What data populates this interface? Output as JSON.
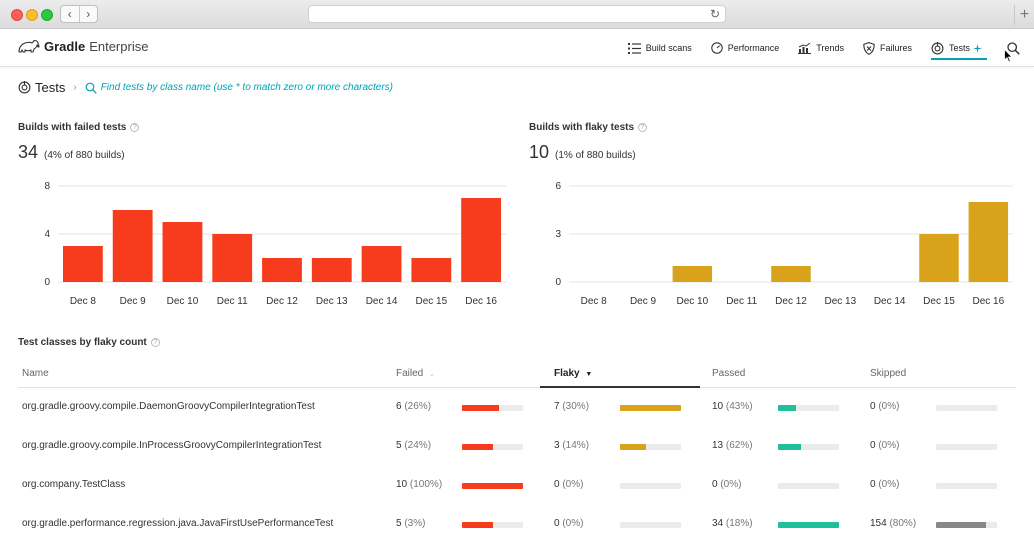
{
  "app": {
    "brand_bold": "Gradle",
    "brand_light": "Enterprise",
    "nav": [
      {
        "label": "Build scans",
        "icon": "list-icon"
      },
      {
        "label": "Performance",
        "icon": "gauge-icon"
      },
      {
        "label": "Trends",
        "icon": "trends-icon"
      },
      {
        "label": "Failures",
        "icon": "shield-icon"
      },
      {
        "label": "Tests",
        "icon": "tests-icon",
        "active": true
      }
    ],
    "accent": "#02a3b5"
  },
  "breadcrumb": {
    "title": "Tests",
    "separator": "›",
    "search_hint": "Find tests by class name (use * to match zero or more characters)"
  },
  "failed_panel": {
    "title": "Builds with failed tests",
    "count": "34",
    "pct": "(4% of 880 builds)"
  },
  "flaky_panel": {
    "title": "Builds with flaky tests",
    "count": "10",
    "pct": "(1% of 880 builds)"
  },
  "chart_data": [
    {
      "type": "bar",
      "title": "Builds with failed tests",
      "categories": [
        "Dec 8",
        "Dec 9",
        "Dec 10",
        "Dec 11",
        "Dec 12",
        "Dec 13",
        "Dec 14",
        "Dec 15",
        "Dec 16"
      ],
      "values": [
        3,
        6,
        5,
        4,
        2,
        2,
        3,
        2,
        7
      ],
      "yticks": [
        0,
        4,
        8
      ],
      "ylim": [
        0,
        8
      ],
      "color": "#f73c1e",
      "grid": true
    },
    {
      "type": "bar",
      "title": "Builds with flaky tests",
      "categories": [
        "Dec 8",
        "Dec 9",
        "Dec 10",
        "Dec 11",
        "Dec 12",
        "Dec 13",
        "Dec 14",
        "Dec 15",
        "Dec 16"
      ],
      "values": [
        0,
        0,
        1,
        0,
        1,
        0,
        0,
        3,
        5
      ],
      "yticks": [
        0,
        3,
        6
      ],
      "ylim": [
        0,
        6
      ],
      "color": "#d9a21b",
      "grid": true
    }
  ],
  "table": {
    "title": "Test classes by flaky count",
    "headers": {
      "name": "Name",
      "failed": "Failed",
      "flaky": "Flaky",
      "passed": "Passed",
      "skipped": "Skipped"
    },
    "colors": {
      "failed": "#f73c1e",
      "flaky": "#d9a21b",
      "passed": "#1fbf9a",
      "skipped": "#888888"
    },
    "rows": [
      {
        "name": "org.gradle.groovy.compile.DaemonGroovyCompilerIntegrationTest",
        "failed": {
          "n": "6",
          "p": "(26%)",
          "frac": 0.6
        },
        "flaky": {
          "n": "7",
          "p": "(30%)",
          "frac": 1.0
        },
        "passed": {
          "n": "10",
          "p": "(43%)",
          "frac": 0.3
        },
        "skipped": {
          "n": "0",
          "p": "(0%)",
          "frac": 0
        }
      },
      {
        "name": "org.gradle.groovy.compile.InProcessGroovyCompilerIntegrationTest",
        "failed": {
          "n": "5",
          "p": "(24%)",
          "frac": 0.5
        },
        "flaky": {
          "n": "3",
          "p": "(14%)",
          "frac": 0.43
        },
        "passed": {
          "n": "13",
          "p": "(62%)",
          "frac": 0.38
        },
        "skipped": {
          "n": "0",
          "p": "(0%)",
          "frac": 0
        }
      },
      {
        "name": "org.company.TestClass",
        "failed": {
          "n": "10",
          "p": "(100%)",
          "frac": 1.0
        },
        "flaky": {
          "n": "0",
          "p": "(0%)",
          "frac": 0
        },
        "passed": {
          "n": "0",
          "p": "(0%)",
          "frac": 0
        },
        "skipped": {
          "n": "0",
          "p": "(0%)",
          "frac": 0
        }
      },
      {
        "name": "org.gradle.performance.regression.java.JavaFirstUsePerformanceTest",
        "failed": {
          "n": "5",
          "p": "(3%)",
          "frac": 0.5
        },
        "flaky": {
          "n": "0",
          "p": "(0%)",
          "frac": 0
        },
        "passed": {
          "n": "34",
          "p": "(18%)",
          "frac": 1.0
        },
        "skipped": {
          "n": "154",
          "p": "(80%)",
          "frac": 0.82
        }
      }
    ]
  }
}
